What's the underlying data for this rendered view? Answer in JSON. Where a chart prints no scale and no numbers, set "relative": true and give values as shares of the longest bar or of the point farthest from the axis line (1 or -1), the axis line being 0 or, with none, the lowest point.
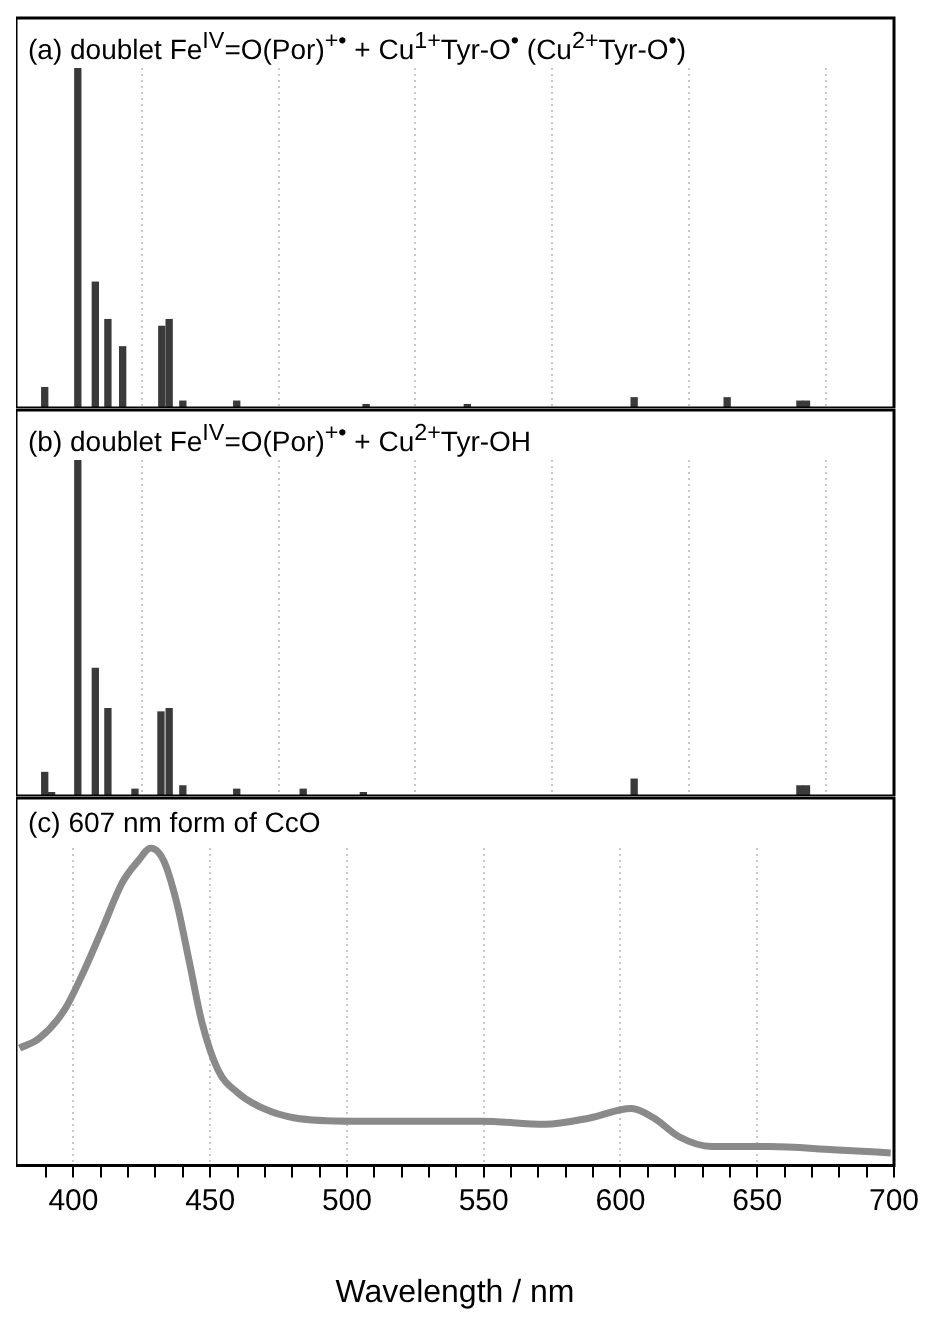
{
  "chart_data": [
    {
      "type": "bar",
      "title": "(a) doublet Fe$^{IV}$=O(Por)$^{+•}$ + Cu$^{1+}$Tyr-O$^{•}$ (Cu$^{2+}$Tyr-O$^{•}$)",
      "relative": true,
      "color": "#3a3a3a",
      "x": [
        389.5,
        401.6,
        408,
        412.6,
        418,
        432.3,
        435,
        440,
        459.7,
        507,
        544,
        605,
        639,
        665.6,
        668
      ],
      "values": [
        0.06,
        1.0,
        0.37,
        0.26,
        0.18,
        0.24,
        0.26,
        0.02,
        0.02,
        0.01,
        0.01,
        0.03,
        0.03,
        0.02,
        0.02
      ],
      "xlim": [
        379,
        700
      ],
      "xticks": [
        400,
        450,
        500,
        550,
        600,
        650,
        700
      ],
      "tick_labels": false,
      "grid": "x"
    },
    {
      "type": "bar",
      "title": "(b) doublet Fe$^{IV}$=O(Por)$^{+•}$ + Cu$^{2+}$Tyr-OH",
      "relative": true,
      "color": "#3a3a3a",
      "x": [
        389.5,
        392,
        401.6,
        408,
        412.6,
        422.5,
        432,
        435,
        440,
        459.7,
        484,
        506,
        605,
        665.6,
        668
      ],
      "values": [
        0.07,
        0.01,
        1.0,
        0.38,
        0.26,
        0.02,
        0.25,
        0.26,
        0.03,
        0.02,
        0.02,
        0.01,
        0.05,
        0.03,
        0.03
      ],
      "xlim": [
        379,
        700
      ],
      "xticks": [
        400,
        450,
        500,
        550,
        600,
        650,
        700
      ],
      "tick_labels": false,
      "grid": "x"
    },
    {
      "type": "line",
      "title": "(c) 607 nm form of CcO",
      "relative": true,
      "color": "#8a8a8a",
      "xlabel": "Wavelength / nm",
      "marker": "none",
      "line_style": "solid",
      "x": [
        380.3,
        387.4,
        396.7,
        403.7,
        410.8,
        417.8,
        423.7,
        428.3,
        433,
        437.7,
        442.4,
        447,
        452.9,
        460,
        469.4,
        481,
        502,
        525.6,
        549,
        572.4,
        588.8,
        604,
        612.2,
        621.6,
        633.3,
        654.4,
        677.8,
        698.8
      ],
      "values": [
        0.37,
        0.4,
        0.49,
        0.61,
        0.75,
        0.89,
        0.96,
        1.0,
        0.96,
        0.83,
        0.64,
        0.45,
        0.3,
        0.23,
        0.18,
        0.15,
        0.14,
        0.14,
        0.14,
        0.13,
        0.15,
        0.18,
        0.15,
        0.09,
        0.06,
        0.06,
        0.05,
        0.04
      ],
      "xlim": [
        379,
        700
      ],
      "xticks": [
        {
          "value": 390,
          "label": null
        },
        400,
        {
          "value": 410,
          "label": null
        },
        {
          "value": 420,
          "label": null
        },
        {
          "value": 430,
          "label": null
        },
        {
          "value": 440,
          "label": null
        },
        450,
        {
          "value": 460,
          "label": null
        },
        {
          "value": 470,
          "label": null
        },
        {
          "value": 480,
          "label": null
        },
        {
          "value": 490,
          "label": null
        },
        500,
        {
          "value": 510,
          "label": null
        },
        {
          "value": 520,
          "label": null
        },
        {
          "value": 530,
          "label": null
        },
        {
          "value": 540,
          "label": null
        },
        550,
        {
          "value": 560,
          "label": null
        },
        {
          "value": 570,
          "label": null
        },
        {
          "value": 580,
          "label": null
        },
        {
          "value": 590,
          "label": null
        },
        600,
        {
          "value": 610,
          "label": null
        },
        {
          "value": 620,
          "label": null
        },
        {
          "value": 630,
          "label": null
        },
        {
          "value": 640,
          "label": null
        },
        650,
        {
          "value": 660,
          "label": null
        },
        {
          "value": 670,
          "label": null
        },
        {
          "value": 680,
          "label": null
        },
        {
          "value": 690,
          "label": null
        },
        700
      ],
      "grid": "x"
    }
  ]
}
